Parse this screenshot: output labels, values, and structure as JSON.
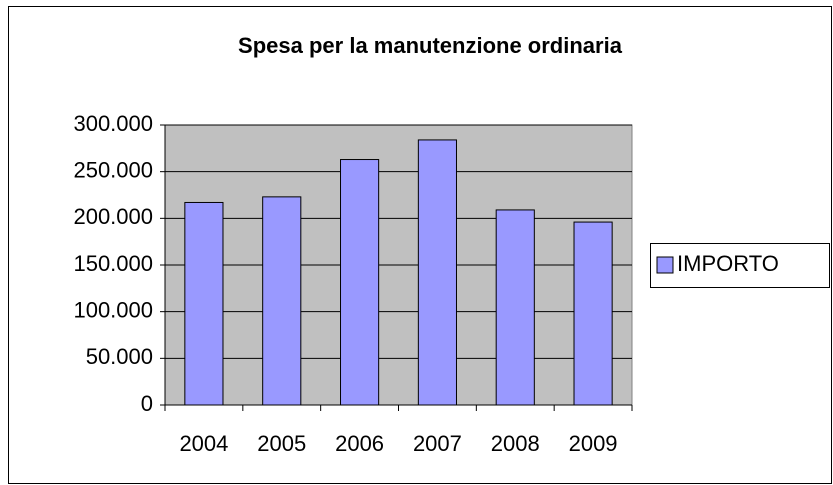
{
  "chart_data": {
    "type": "bar",
    "title": "Spesa per la manutenzione ordinaria",
    "categories": [
      "2004",
      "2005",
      "2006",
      "2007",
      "2008",
      "2009"
    ],
    "series": [
      {
        "name": "IMPORTO",
        "color": "#9999ff",
        "values": [
          217000,
          223000,
          263000,
          284000,
          209000,
          196000
        ]
      }
    ],
    "ylim": [
      0,
      300000
    ],
    "yticks": [
      0,
      {
        "value": 50000,
        "label": "50.000"
      },
      {
        "value": 100000,
        "label": "100.000"
      },
      {
        "value": 150000,
        "label": "150.000"
      },
      {
        "value": 200000,
        "label": "200.000"
      },
      {
        "value": 250000,
        "label": "250.000"
      },
      {
        "value": 300000,
        "label": "300.000"
      }
    ],
    "grid": true,
    "legend": "right"
  }
}
